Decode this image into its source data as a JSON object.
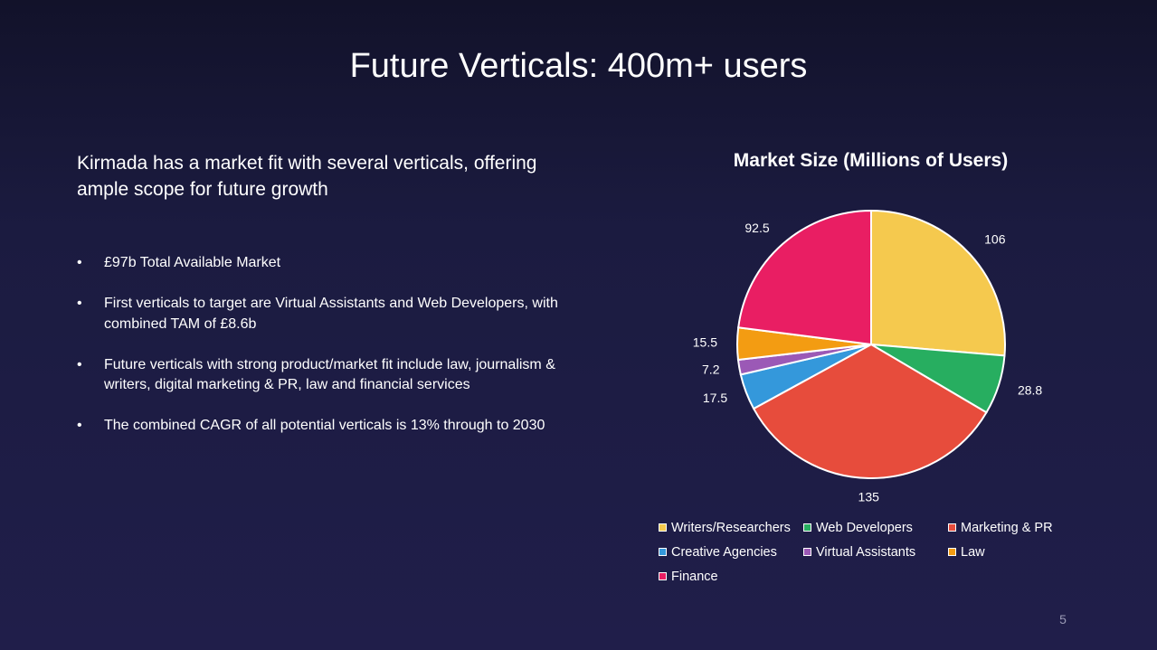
{
  "slide": {
    "title": "Future Verticals: 400m+ users",
    "intro": "Kirmada has a  market fit with several verticals, offering ample scope for future growth",
    "bullet_symbol": "•",
    "bullets": [
      "£97b Total Available Market",
      "First verticals to target are Virtual Assistants and Web Developers, with combined TAM of £8.6b",
      "Future verticals with strong product/market fit include law, journalism & writers, digital marketing & PR, law and financial services",
      "The combined CAGR of all potential verticals is 13% through to 2030"
    ],
    "page_number": "5"
  },
  "chart_data": {
    "type": "pie",
    "title": "Market Size (Millions of Users)",
    "start_angle": "12 o'clock",
    "direction": "clockwise",
    "legend_position": "bottom",
    "slices": [
      {
        "name": "Writers/Researchers",
        "value": 106,
        "label": "106",
        "color": "#f5c94e"
      },
      {
        "name": "Web Developers",
        "value": 28.8,
        "label": "28.8",
        "color": "#27ae60"
      },
      {
        "name": "Marketing & PR",
        "value": 135,
        "label": "135",
        "color": "#e74c3c"
      },
      {
        "name": "Creative Agencies",
        "value": 17.5,
        "label": "17.5",
        "color": "#3498db"
      },
      {
        "name": "Virtual Assistants",
        "value": 7.2,
        "label": "7.2",
        "color": "#9b59b6"
      },
      {
        "name": "Law",
        "value": 15.5,
        "label": "15.5",
        "color": "#f39c12"
      },
      {
        "name": "Finance",
        "value": 92.5,
        "label": "92.5",
        "color": "#e91e63"
      }
    ]
  }
}
